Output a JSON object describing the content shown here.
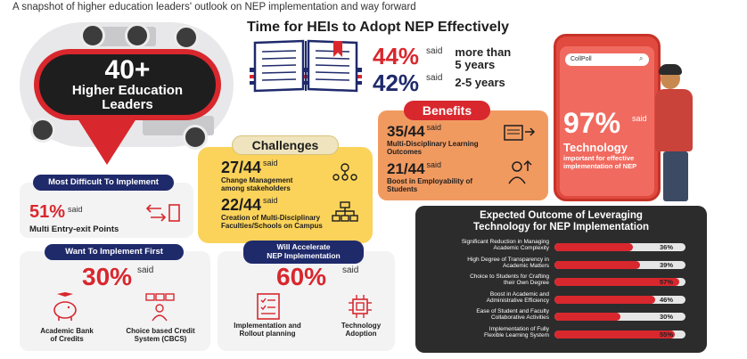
{
  "subtitle": "A snapshot of higher education leaders' outlook on NEP implementation and way forward",
  "hero": {
    "number": "40+",
    "line1": "Higher Education",
    "line2": "Leaders"
  },
  "time_adopt": {
    "title": "Time for HEIs to Adopt NEP Effectively",
    "rows": [
      {
        "pct": "44%",
        "said": "said",
        "label_1": "more than",
        "label_2": "5 years"
      },
      {
        "pct": "42%",
        "said": "said",
        "label_1": "2-5 years",
        "label_2": ""
      }
    ]
  },
  "benefits": {
    "tag": "Benefits",
    "items": [
      {
        "num": "35/44",
        "said": "said",
        "desc_1": "Multi-Disciplinary Learning",
        "desc_2": "Outcomes"
      },
      {
        "num": "21/44",
        "said": "said",
        "desc_1": "Boost in Employability of",
        "desc_2": "Students"
      }
    ]
  },
  "phone": {
    "search": "CollPoll",
    "pct": "97%",
    "said": "said",
    "title": "Technology",
    "desc_1": "important for effective",
    "desc_2": "implementation of NEP"
  },
  "challenges": {
    "tag": "Challenges",
    "items": [
      {
        "num": "27/44",
        "said": "said",
        "desc_1": "Change Management",
        "desc_2": "among stakeholders"
      },
      {
        "num": "22/44",
        "said": "said",
        "desc_1": "Creation of Multi-Disciplinary",
        "desc_2": "Faculties/Schools on Campus"
      }
    ]
  },
  "most_difficult": {
    "tag": "Most Difficult To Implement",
    "pct": "51%",
    "said": "said",
    "desc": "Multi Entry-exit Points"
  },
  "implement_first": {
    "tag": "Want To Implement First",
    "pct": "30%",
    "said": "said",
    "item1_1": "Academic Bank",
    "item1_2": "of Credits",
    "item2_1": "Choice based Credit",
    "item2_2": "System (CBCS)"
  },
  "accelerate": {
    "tag_1": "Will Accelerate",
    "tag_2": "NEP Implementation",
    "pct": "60%",
    "said": "said",
    "item1_1": "Implementation and",
    "item1_2": "Rollout planning",
    "item2_1": "Technology",
    "item2_2": "Adoption"
  },
  "expected": {
    "title_1": "Expected Outcome of Leveraging",
    "title_2": "Technology for NEP Implementation",
    "rows": [
      {
        "label_1": "Significant Reduction in Managing",
        "label_2": "Academic Complexity",
        "value": 36,
        "display": "36%"
      },
      {
        "label_1": "High Degree of Transparency in",
        "label_2": "Academic Matters",
        "value": 39,
        "display": "39%"
      },
      {
        "label_1": "Choice to Students for Crafting",
        "label_2": "their Own Degree",
        "value": 57,
        "display": "57%"
      },
      {
        "label_1": "Boost in Academic and",
        "label_2": "Administrative Efficiency",
        "value": 46,
        "display": "46%"
      },
      {
        "label_1": "Ease of Student and Faculty",
        "label_2": "Collaborative Activities",
        "value": 30,
        "display": "30%"
      },
      {
        "label_1": "Implementation of Fully",
        "label_2": "Flexible Learning System",
        "value": 55,
        "display": "55%"
      }
    ]
  },
  "colors": {
    "accent_red": "#d8272d",
    "navy": "#1f2a6b",
    "yellow": "#fbd35a",
    "orange": "#f19a60",
    "dark": "#2c2c2c"
  }
}
